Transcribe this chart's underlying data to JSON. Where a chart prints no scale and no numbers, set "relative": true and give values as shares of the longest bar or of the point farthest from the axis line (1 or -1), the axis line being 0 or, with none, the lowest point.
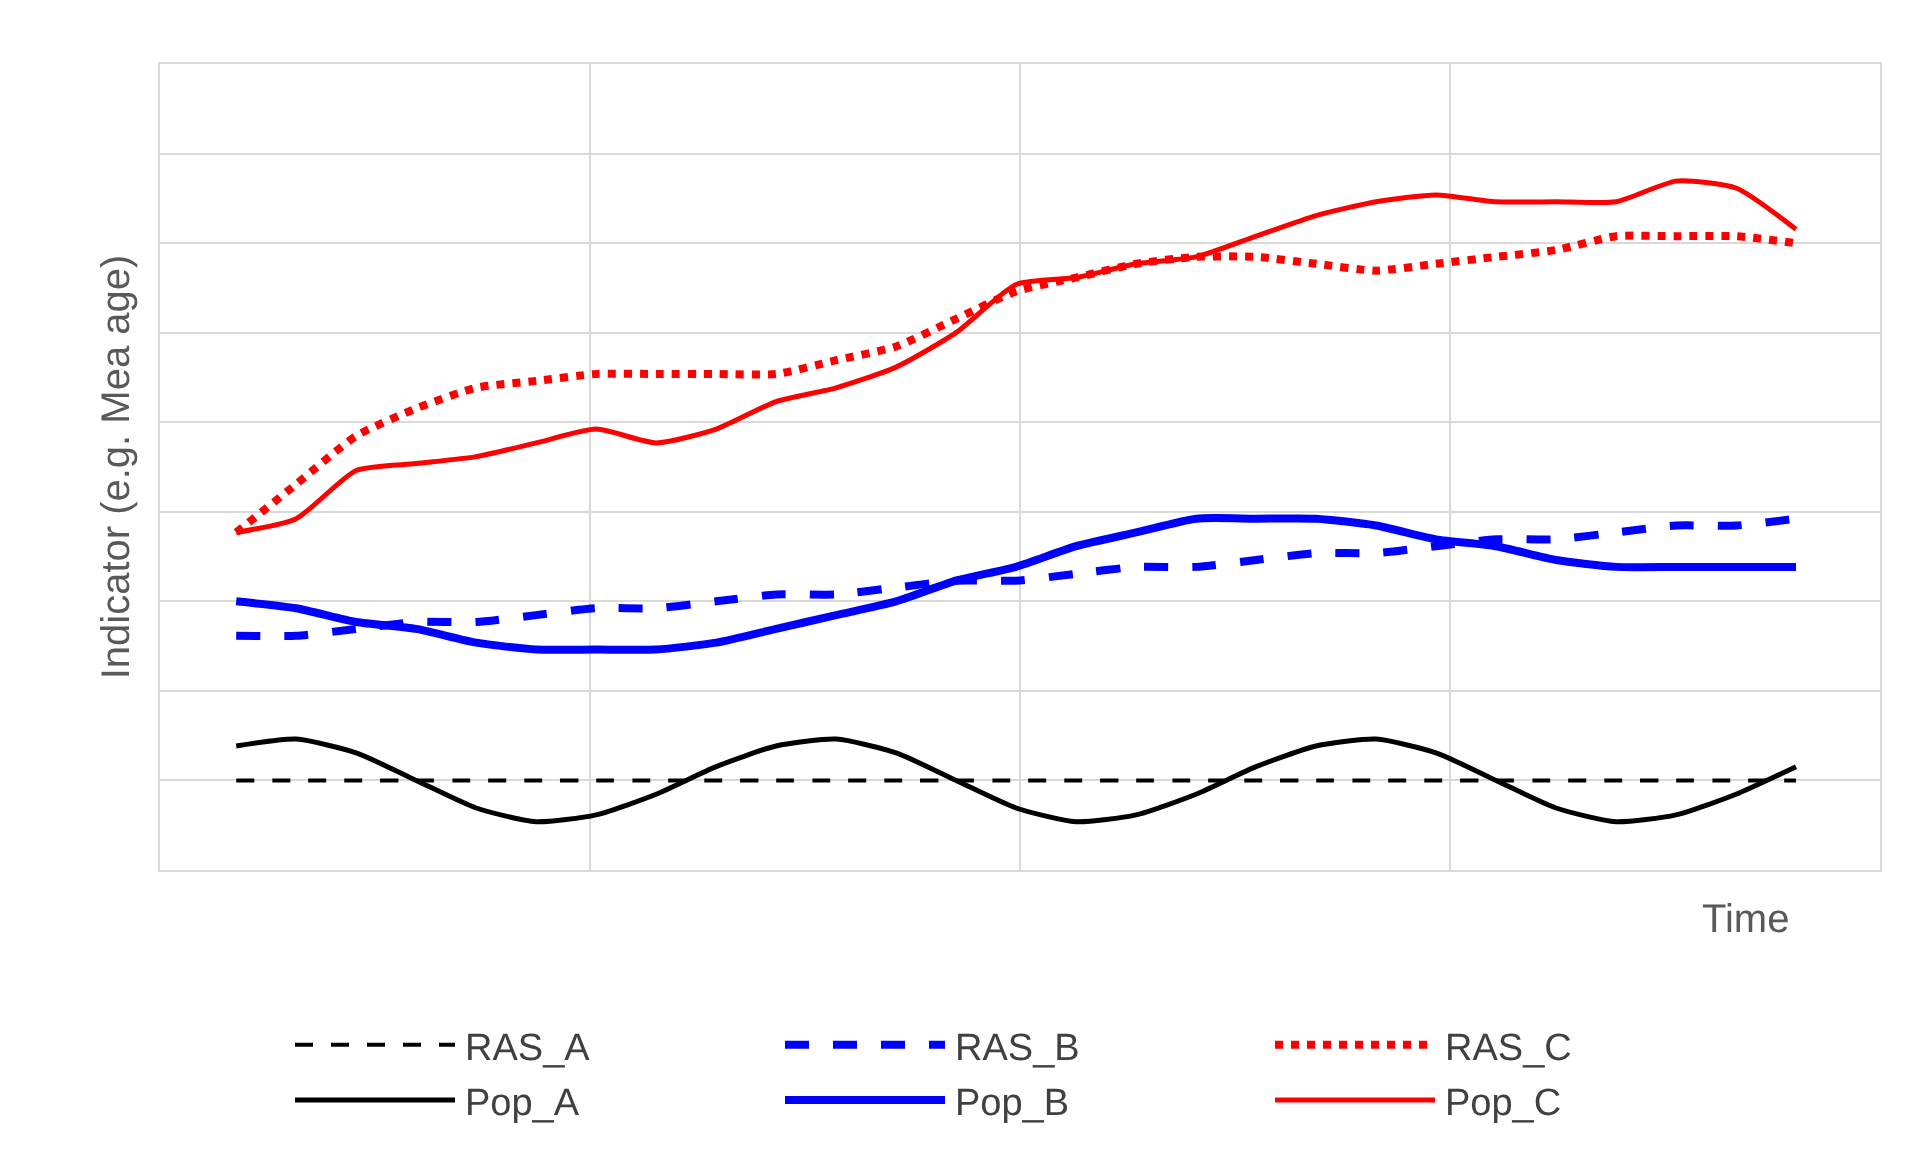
{
  "chart_data": {
    "type": "line",
    "relative": true,
    "xlabel": "Time",
    "ylabel": "Indicator (e.g. Mea age)",
    "grid": true,
    "legend": "bottom",
    "marker": "none",
    "categories": [
      null,
      null,
      null,
      null,
      null,
      null,
      null,
      null,
      null,
      null,
      null,
      null,
      null,
      null,
      null,
      null,
      null,
      null,
      null,
      null,
      null,
      null,
      null,
      null,
      null,
      null,
      null
    ],
    "series": [
      {
        "name": "RAS_A",
        "color": "#000000",
        "line_style": "dashed",
        "values": [
          0.13,
          0.13,
          0.13,
          0.13,
          0.13,
          0.13,
          0.13,
          0.13,
          0.13,
          0.13,
          0.13,
          0.13,
          0.13,
          0.13,
          0.13,
          0.13,
          0.13,
          0.13,
          0.13,
          0.13,
          0.13,
          0.13,
          0.13,
          0.13,
          0.13,
          0.13,
          0.13
        ]
      },
      {
        "name": "RAS_B",
        "color": "#0000ff",
        "line_style": "dashed",
        "values": [
          0.34,
          0.34,
          0.35,
          0.36,
          0.36,
          0.37,
          0.38,
          0.38,
          0.39,
          0.4,
          0.4,
          0.41,
          0.42,
          0.42,
          0.43,
          0.44,
          0.44,
          0.45,
          0.46,
          0.46,
          0.47,
          0.48,
          0.48,
          0.49,
          0.5,
          0.5,
          0.51
        ]
      },
      {
        "name": "RAS_C",
        "color": "#ff0000",
        "line_style": "dotted",
        "values": [
          0.49,
          0.56,
          0.63,
          0.67,
          0.7,
          0.71,
          0.72,
          0.72,
          0.72,
          0.72,
          0.74,
          0.76,
          0.8,
          0.84,
          0.86,
          0.88,
          0.89,
          0.89,
          0.88,
          0.87,
          0.88,
          0.89,
          0.9,
          0.92,
          0.92,
          0.92,
          0.91
        ]
      },
      {
        "name": "Pop_A",
        "color": "#000000",
        "line_style": "solid",
        "values": [
          0.18,
          0.19,
          0.17,
          0.13,
          0.09,
          0.07,
          0.08,
          0.11,
          0.15,
          0.18,
          0.19,
          0.17,
          0.13,
          0.09,
          0.07,
          0.08,
          0.11,
          0.15,
          0.18,
          0.19,
          0.17,
          0.13,
          0.09,
          0.07,
          0.08,
          0.11,
          0.15
        ]
      },
      {
        "name": "Pop_B",
        "color": "#0000ff",
        "line_style": "solid",
        "values": [
          0.39,
          0.38,
          0.36,
          0.35,
          0.33,
          0.32,
          0.32,
          0.32,
          0.33,
          0.35,
          0.37,
          0.39,
          0.42,
          0.44,
          0.47,
          0.49,
          0.51,
          0.51,
          0.51,
          0.5,
          0.48,
          0.47,
          0.45,
          0.44,
          0.44,
          0.44,
          0.44
        ]
      },
      {
        "name": "Pop_C",
        "color": "#ff0000",
        "line_style": "solid",
        "values": [
          0.49,
          0.51,
          0.58,
          0.59,
          0.6,
          0.62,
          0.64,
          0.62,
          0.64,
          0.68,
          0.7,
          0.73,
          0.78,
          0.85,
          0.86,
          0.88,
          0.89,
          0.92,
          0.95,
          0.97,
          0.98,
          0.97,
          0.97,
          0.97,
          1.0,
          0.99,
          0.93
        ]
      }
    ]
  }
}
